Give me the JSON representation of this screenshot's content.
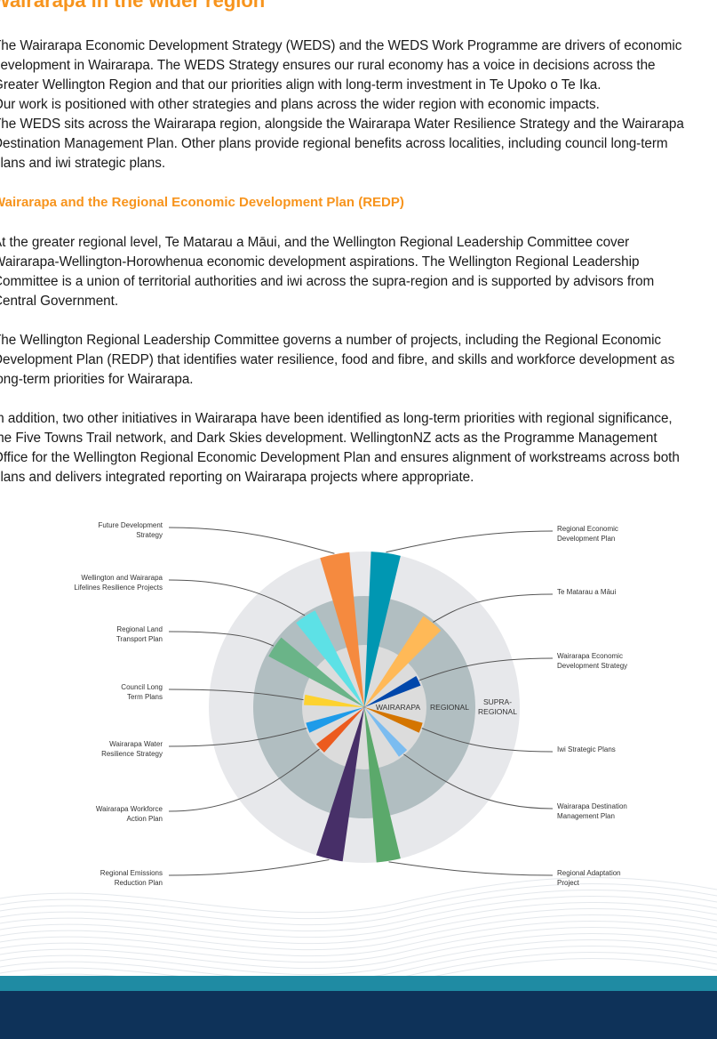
{
  "heading": "Wairarapa in the wider region",
  "paragraph1": [
    "The Wairarapa Economic Development Strategy (WEDS) and the WEDS Work Programme are drivers of economic",
    "development in Wairarapa. The WEDS Strategy ensures our rural economy has a voice in decisions across the",
    "Greater Wellington Region and that our priorities align with long-term investment in Te Upoko o Te Ika.",
    "Our work is positioned with other strategies and plans across the wider region with economic impacts.",
    "The WEDS sits across the Wairarapa region, alongside the Wairarapa Water Resilience Strategy and the Wairarapa",
    "Destination Management Plan. Other plans provide regional benefits across localities, including council long-term",
    "plans and iwi strategic plans."
  ],
  "subheading": "Wairarapa and the Regional Economic Development Plan (REDP)",
  "paragraph2": [
    "At the greater regional level, Te Matarau a Māui, and the Wellington Regional Leadership Committee cover",
    "Wairarapa-Wellington-Horowhenua economic development aspirations. The Wellington Regional Leadership",
    "Committee is a union of territorial authorities and iwi across the supra-region and is supported by advisors from",
    "Central Government."
  ],
  "paragraph3": [
    "The Wellington Regional Leadership Committee governs a number of projects, including the Regional Economic",
    "Development Plan (REDP) that identifies water resilience, food and fibre, and skills and workforce development as",
    "long-term priorities for Wairarapa."
  ],
  "paragraph4": [
    "In addition, two other initiatives in Wairarapa have been identified as long-term priorities with regional significance,",
    "the Five Towns Trail network, and Dark Skies development. WellingtonNZ acts as the Programme Management",
    "Office for the Wellington Regional Economic Development Plan and ensures alignment of workstreams across both",
    "plans and delivers integrated reporting on Wairarapa projects where appropriate."
  ],
  "diagram": {
    "rings": {
      "inner": "WAIRARAPA",
      "middle": "REGIONAL",
      "outer": "SUPRA-\nREGIONAL"
    },
    "ring_colors": {
      "inner": "#dcdcdc",
      "middle": "#b1bec1",
      "outer": "#e7e8eb"
    },
    "plans": [
      {
        "label": "Regional Economic\nDevelopment Plan",
        "color": "#0097b2",
        "level": "supra-regional"
      },
      {
        "label": "Te Matarau a Māui",
        "color": "#ffb957",
        "level": "regional"
      },
      {
        "label": "Wairarapa Economic\nDevelopment Strategy",
        "color": "#0047ab",
        "level": "wairarapa"
      },
      {
        "label": "Iwi Strategic Plans",
        "color": "#d47500",
        "level": "wairarapa"
      },
      {
        "label": "Wairarapa Destination\nManagement Plan",
        "color": "#7bbcf0",
        "level": "wairarapa"
      },
      {
        "label": "Regional Adaptation\nProject",
        "color": "#5ba96b",
        "level": "supra-regional"
      },
      {
        "label": "Regional Emissions\nReduction Plan",
        "color": "#472f68",
        "level": "supra-regional"
      },
      {
        "label": "Wairarapa Workforce\nAction Plan",
        "color": "#ec5b1e",
        "level": "wairarapa"
      },
      {
        "label": "Wairarapa Water\nResilience Strategy",
        "color": "#1e9be9",
        "level": "wairarapa"
      },
      {
        "label": "Council Long\nTerm Plans",
        "color": "#fdd22f",
        "level": "wairarapa"
      },
      {
        "label": "Regional Land\nTransport Plan",
        "color": "#6ab488",
        "level": "regional"
      },
      {
        "label": "Wellington and Wairarapa\nLifelines Resilience Projects",
        "color": "#5de1e6",
        "level": "regional"
      },
      {
        "label": "Future Development\nStrategy",
        "color": "#f58a3f",
        "level": "supra-regional"
      }
    ]
  },
  "colors": {
    "heading": "#f7941d",
    "footer_band": "#1f8ba3",
    "footer": "#0e3259"
  }
}
